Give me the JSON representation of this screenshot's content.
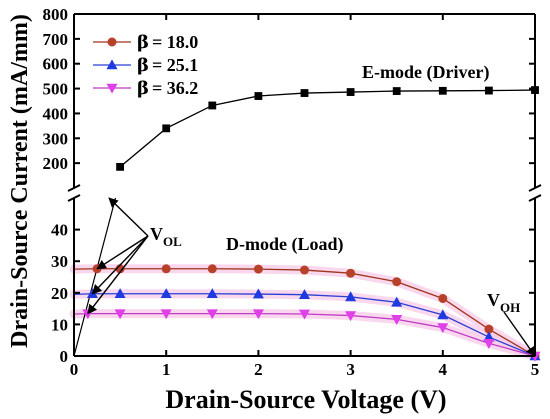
{
  "chart_data": {
    "type": "line",
    "xlabel": "Drain-Source Voltage (V)",
    "ylabel": "Drain-Source Current (mA/mm)",
    "xlim": [
      0,
      5
    ],
    "x_ticks": [
      "0",
      "1",
      "2",
      "3",
      "4",
      "5"
    ],
    "y_axis_broken": true,
    "y_upper_range": [
      100,
      800
    ],
    "y_upper_ticks": [
      "200",
      "300",
      "400",
      "500",
      "600",
      "700",
      "800"
    ],
    "y_lower_range": [
      0,
      50
    ],
    "y_lower_ticks": [
      "0",
      "10",
      "20",
      "30",
      "40"
    ],
    "grid": false,
    "legend_position": "top-left",
    "series": [
      {
        "name": "β = 18.0",
        "legend_symbol": "β",
        "legend_value": "= 18.0",
        "color": "#a0341c",
        "marker": "circle",
        "marker_color": "#b8412a",
        "segment": "lower",
        "x": [
          0,
          0.25,
          0.5,
          1,
          1.5,
          2,
          2.5,
          3,
          3.5,
          4,
          4.5,
          5
        ],
        "y": [
          27.5,
          27.6,
          27.6,
          27.6,
          27.6,
          27.5,
          27.2,
          26.2,
          23.5,
          18.2,
          8.5,
          0
        ]
      },
      {
        "name": "β = 25.1",
        "legend_symbol": "β",
        "legend_value": "= 25.1",
        "color": "#2a3fd4",
        "marker": "triangle-up",
        "marker_color": "#1f3be0",
        "segment": "lower",
        "x": [
          0,
          0.2,
          0.5,
          1,
          1.5,
          2,
          2.5,
          3,
          3.5,
          4,
          4.5,
          5
        ],
        "y": [
          19.5,
          19.7,
          19.7,
          19.7,
          19.7,
          19.6,
          19.4,
          18.7,
          17.0,
          13.0,
          6.0,
          0
        ]
      },
      {
        "name": "β = 36.2",
        "legend_symbol": "β",
        "legend_value": "= 36.2",
        "color": "#c23bc8",
        "marker": "triangle-down",
        "marker_color": "#e040e8",
        "segment": "lower",
        "x": [
          0,
          0.15,
          0.5,
          1,
          1.5,
          2,
          2.5,
          3,
          3.5,
          4,
          4.5,
          5
        ],
        "y": [
          13.3,
          13.4,
          13.4,
          13.4,
          13.4,
          13.4,
          13.3,
          12.8,
          11.6,
          9.0,
          4.0,
          0
        ]
      },
      {
        "name": "E-mode (Driver)",
        "color": "#000000",
        "marker": "square",
        "marker_color": "#000000",
        "segment": "upper",
        "x": [
          0.5,
          1,
          1.5,
          2,
          2.5,
          3,
          3.5,
          4,
          4.5,
          5
        ],
        "y": [
          185,
          340,
          432,
          470,
          482,
          486,
          490,
          491,
          492,
          494
        ]
      }
    ],
    "emode_lower_stub": {
      "x": [
        0,
        0.45
      ],
      "y": [
        0,
        50
      ]
    },
    "annotations": {
      "emode_label": "E-mode (Driver)",
      "dmode_label": "D-mode (Load)",
      "vol_main": "V",
      "vol_sub": "OL",
      "voh_main": "V",
      "voh_sub": "OH"
    },
    "vol_arrow_targets": [
      {
        "x": 0.38,
        "y": 50
      },
      {
        "x": 0.25,
        "y": 27.6
      },
      {
        "x": 0.2,
        "y": 19.7
      },
      {
        "x": 0.15,
        "y": 13.4
      }
    ],
    "voh_target": {
      "x": 5,
      "y": 0
    }
  }
}
